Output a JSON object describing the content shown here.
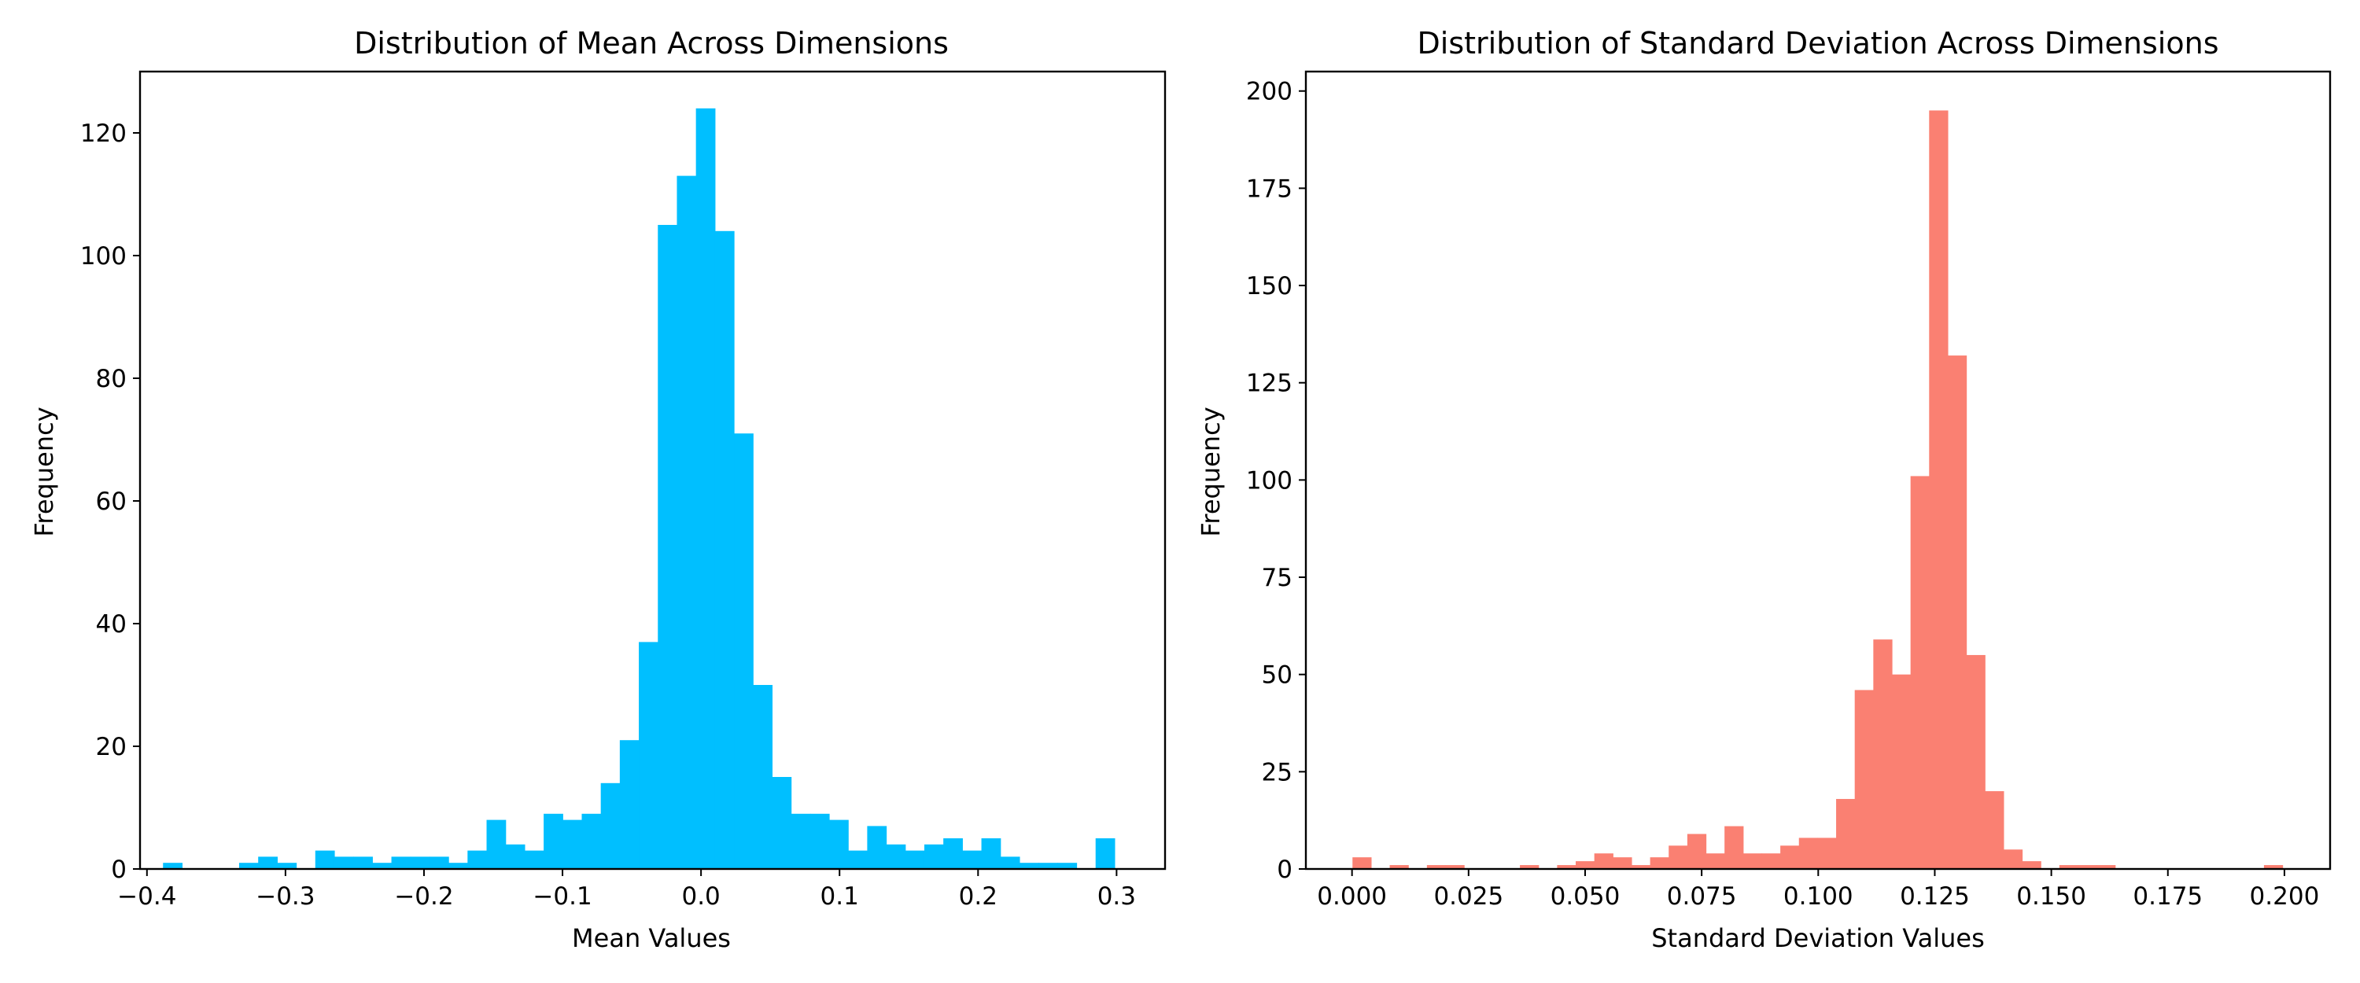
{
  "chart_data": [
    {
      "type": "bar",
      "title": "Distribution of Mean Across Dimensions",
      "xlabel": "Mean Values",
      "ylabel": "Frequency",
      "color": "#00BFFF",
      "xlim": [
        -0.405,
        0.335
      ],
      "ylim": [
        0,
        130
      ],
      "xticks": [
        -0.4,
        -0.3,
        -0.2,
        -0.1,
        0.0,
        0.1,
        0.2,
        0.3
      ],
      "xtick_labels": [
        "−0.4",
        "−0.3",
        "−0.2",
        "−0.1",
        "0.0",
        "0.1",
        "0.2",
        "0.3"
      ],
      "yticks": [
        0,
        20,
        40,
        60,
        80,
        100,
        120
      ],
      "ytick_labels": [
        "0",
        "20",
        "40",
        "60",
        "80",
        "100",
        "120"
      ],
      "bin_start": -0.3884,
      "bin_width": 0.01374,
      "values": [
        1,
        0,
        0,
        0,
        1,
        2,
        1,
        0,
        3,
        2,
        2,
        1,
        2,
        2,
        2,
        1,
        3,
        8,
        4,
        3,
        9,
        8,
        9,
        14,
        21,
        37,
        105,
        113,
        124,
        104,
        71,
        30,
        15,
        9,
        9,
        8,
        3,
        7,
        4,
        3,
        4,
        5,
        3,
        5,
        2,
        1,
        1,
        1,
        0,
        5
      ],
      "grid": false,
      "legend": "none"
    },
    {
      "type": "bar",
      "title": "Distribution of Standard Deviation Across Dimensions",
      "xlabel": "Standard Deviation Values",
      "ylabel": "Frequency",
      "color": "#FA8072",
      "xlim": [
        -0.0099,
        0.2098
      ],
      "ylim": [
        0,
        205
      ],
      "xticks": [
        0.0,
        0.025,
        0.05,
        0.075,
        0.1,
        0.125,
        0.15,
        0.175,
        0.2
      ],
      "xtick_labels": [
        "0.000",
        "0.025",
        "0.050",
        "0.075",
        "0.100",
        "0.125",
        "0.150",
        "0.175",
        "0.200"
      ],
      "yticks": [
        0,
        25,
        50,
        75,
        100,
        125,
        150,
        175,
        200
      ],
      "ytick_labels": [
        "0",
        "25",
        "50",
        "75",
        "100",
        "125",
        "150",
        "175",
        "200"
      ],
      "bin_start": 0.0001,
      "bin_width": 0.00399,
      "values": [
        3,
        0,
        1,
        0,
        1,
        1,
        0,
        0,
        0,
        1,
        0,
        1,
        2,
        4,
        3,
        1,
        3,
        6,
        9,
        4,
        11,
        4,
        4,
        6,
        8,
        8,
        18,
        46,
        59,
        50,
        101,
        195,
        132,
        55,
        20,
        5,
        2,
        0,
        1,
        1,
        1,
        0,
        0,
        0,
        0,
        0,
        0,
        0,
        0,
        1
      ],
      "grid": false,
      "legend": "none"
    }
  ]
}
